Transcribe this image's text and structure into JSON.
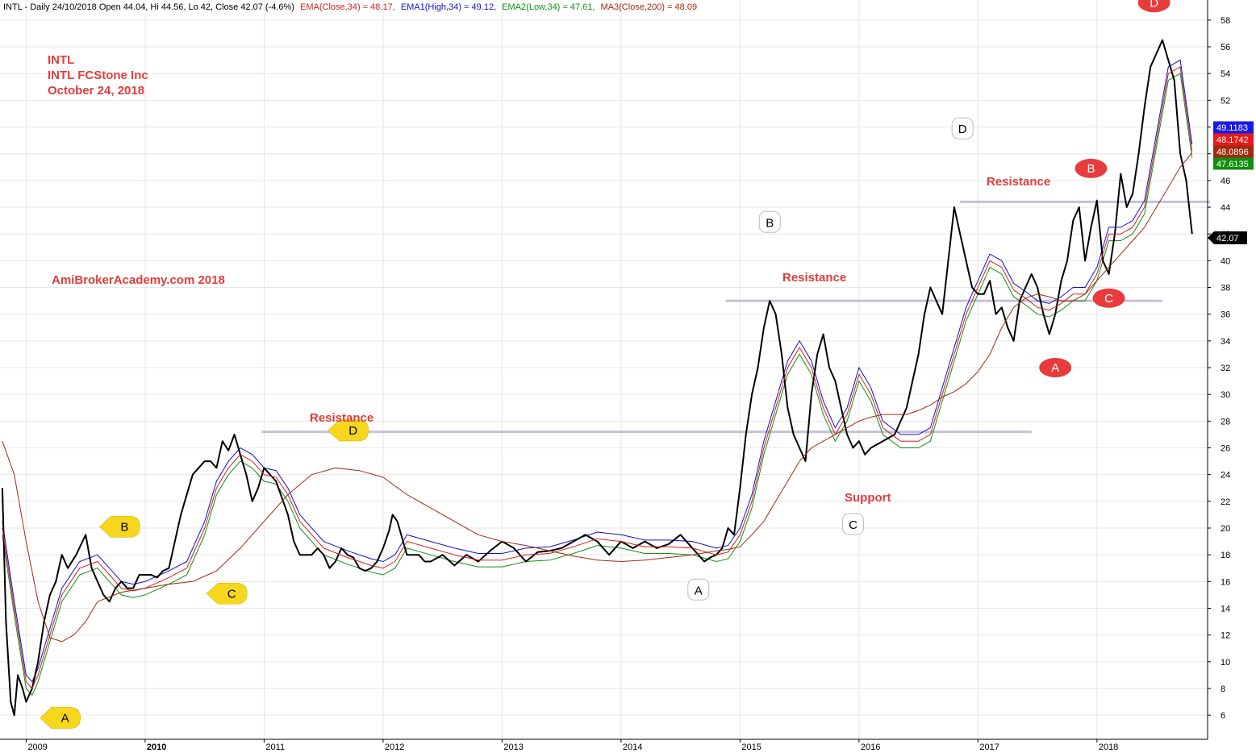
{
  "header": {
    "ticker_info": "INTL - Daily 24/10/2018 Open 44.04, Hi 44.56, Lo 42, Close 42.07 (-4.6%)",
    "ema": "EMA(Close,34) = 48.17,",
    "ema1": "EMA1(High,34) = 49.12,",
    "ema2": "EMA2(Low,34) = 47.61,",
    "ma3": "MA3(Close,200) = 48.09"
  },
  "notes": {
    "symbol": "INTL",
    "company": "INTL FCStone Inc",
    "date": "October 24, 2018",
    "watermark": "AmiBrokerAcademy.com  2018",
    "resistance_label": "Resistance",
    "support_label": "Support"
  },
  "price_tags": {
    "ema1": "49.1183",
    "ema": "48.1742",
    "ma3": "48.0896",
    "ema2": "47.6135",
    "close": "42.07"
  },
  "colors": {
    "price": "#000000",
    "ema_close": "#d42020",
    "ema_high": "#1010d0",
    "ema_low": "#109010",
    "ma_200": "#a02a10",
    "grid": "#e6e6e6",
    "level_line": "#c6c0da",
    "note_red": "#e03c3c",
    "pattern_yellow": "#f7d71e",
    "pattern_red": "#e83b3b"
  },
  "chart_data": {
    "type": "line",
    "title": "INTL - Daily 24/10/2018",
    "xlabel": "",
    "ylabel": "",
    "x_ticks": [
      "2009",
      "2010",
      "2011",
      "2012",
      "2013",
      "2014",
      "2015",
      "2016",
      "2017",
      "2018"
    ],
    "y_ticks": [
      6,
      8,
      10,
      12,
      14,
      16,
      18,
      20,
      22,
      24,
      26,
      28,
      30,
      32,
      34,
      36,
      38,
      40,
      42,
      44,
      46,
      48,
      50,
      52,
      54,
      56,
      58
    ],
    "ylim": [
      4.2,
      59.5
    ],
    "xlim": [
      2008.78,
      2018.93
    ],
    "grid": true,
    "legend": "none",
    "series": [
      {
        "name": "INTL",
        "x": [
          2008.8,
          2008.83,
          2008.87,
          2008.9,
          2008.93,
          2008.97,
          2009.0,
          2009.05,
          2009.1,
          2009.15,
          2009.2,
          2009.25,
          2009.3,
          2009.35,
          2009.42,
          2009.5,
          2009.55,
          2009.6,
          2009.65,
          2009.7,
          2009.75,
          2009.8,
          2009.85,
          2009.9,
          2009.95,
          2010.0,
          2010.05,
          2010.1,
          2010.15,
          2010.2,
          2010.3,
          2010.4,
          2010.5,
          2010.55,
          2010.6,
          2010.65,
          2010.7,
          2010.75,
          2010.8,
          2010.85,
          2010.9,
          2010.95,
          2011.0,
          2011.1,
          2011.2,
          2011.25,
          2011.3,
          2011.4,
          2011.45,
          2011.5,
          2011.55,
          2011.6,
          2011.65,
          2011.7,
          2011.75,
          2011.8,
          2011.85,
          2011.9,
          2011.95,
          2012.0,
          2012.05,
          2012.08,
          2012.12,
          2012.2,
          2012.3,
          2012.35,
          2012.4,
          2012.5,
          2012.6,
          2012.7,
          2012.8,
          2012.9,
          2013.0,
          2013.1,
          2013.2,
          2013.3,
          2013.4,
          2013.5,
          2013.6,
          2013.7,
          2013.8,
          2013.9,
          2014.0,
          2014.1,
          2014.2,
          2014.3,
          2014.4,
          2014.5,
          2014.6,
          2014.7,
          2014.75,
          2014.8,
          2014.85,
          2014.9,
          2014.95,
          2015.0,
          2015.05,
          2015.1,
          2015.15,
          2015.2,
          2015.25,
          2015.3,
          2015.35,
          2015.4,
          2015.45,
          2015.5,
          2015.55,
          2015.6,
          2015.65,
          2015.7,
          2015.75,
          2015.8,
          2015.85,
          2015.9,
          2015.95,
          2016.0,
          2016.05,
          2016.1,
          2016.2,
          2016.3,
          2016.4,
          2016.45,
          2016.5,
          2016.55,
          2016.6,
          2016.65,
          2016.7,
          2016.75,
          2016.8,
          2016.85,
          2016.9,
          2016.95,
          2017.0,
          2017.05,
          2017.1,
          2017.15,
          2017.2,
          2017.25,
          2017.3,
          2017.35,
          2017.4,
          2017.45,
          2017.5,
          2017.55,
          2017.6,
          2017.65,
          2017.7,
          2017.75,
          2017.8,
          2017.85,
          2017.9,
          2017.95,
          2018.0,
          2018.05,
          2018.1,
          2018.15,
          2018.2,
          2018.25,
          2018.3,
          2018.35,
          2018.4,
          2018.45,
          2018.5,
          2018.55,
          2018.6,
          2018.65,
          2018.7,
          2018.75,
          2018.8
        ],
        "values": [
          23,
          13,
          7,
          6,
          9,
          8,
          7,
          8,
          10,
          13,
          15,
          16,
          18,
          17,
          18,
          19.5,
          17,
          16,
          15,
          14.5,
          15.5,
          16,
          15.5,
          15.5,
          16.5,
          16.5,
          16.5,
          16.3,
          16.8,
          17,
          21,
          24,
          25,
          25,
          24.5,
          26.5,
          25.8,
          27,
          25.5,
          24,
          22,
          23,
          24.5,
          23.5,
          21,
          19,
          18,
          18,
          18.5,
          18,
          17,
          17.5,
          18.5,
          18,
          17.8,
          17,
          16.8,
          17,
          17.5,
          18.5,
          19.8,
          21,
          20.5,
          18,
          18,
          17.5,
          17.5,
          18,
          17.2,
          18,
          17.5,
          18.3,
          19,
          18.5,
          17.5,
          18.2,
          18.3,
          18.5,
          19,
          19.5,
          19,
          18,
          19,
          18.5,
          19,
          18.5,
          18.8,
          19.5,
          18.5,
          17.5,
          17.8,
          18,
          18.5,
          20,
          19.5,
          23,
          27,
          30,
          32,
          35,
          37,
          36,
          33,
          29,
          27,
          26,
          25,
          30,
          33,
          34.5,
          32,
          31,
          29,
          27,
          26,
          26.5,
          25.5,
          26,
          26.5,
          27,
          29,
          31,
          33,
          36,
          38,
          37,
          36,
          40,
          44,
          42,
          40,
          38,
          37.5,
          37.5,
          38.5,
          36,
          36.5,
          35,
          34,
          37,
          38,
          39,
          38,
          36,
          34.5,
          36,
          38.5,
          40,
          43,
          44,
          40,
          42.5,
          44.5,
          40,
          39,
          42,
          46.5,
          44,
          45,
          48,
          51.5,
          54.5,
          55.5,
          56.5,
          55,
          53.5,
          48,
          46,
          42
        ]
      },
      {
        "name": "EMA(Close,34)",
        "x": [
          2008.8,
          2008.9,
          2009.0,
          2009.05,
          2009.1,
          2009.2,
          2009.3,
          2009.45,
          2009.6,
          2009.7,
          2009.8,
          2009.9,
          2010.0,
          2010.2,
          2010.35,
          2010.5,
          2010.6,
          2010.7,
          2010.8,
          2010.9,
          2011.0,
          2011.1,
          2011.2,
          2011.3,
          2011.5,
          2011.7,
          2011.9,
          2012.0,
          2012.1,
          2012.2,
          2012.4,
          2012.6,
          2012.8,
          2013.0,
          2013.2,
          2013.4,
          2013.6,
          2013.8,
          2014.0,
          2014.2,
          2014.4,
          2014.6,
          2014.8,
          2014.9,
          2015.0,
          2015.1,
          2015.2,
          2015.3,
          2015.4,
          2015.5,
          2015.6,
          2015.7,
          2015.8,
          2015.9,
          2016.0,
          2016.1,
          2016.2,
          2016.35,
          2016.5,
          2016.6,
          2016.7,
          2016.8,
          2016.9,
          2017.0,
          2017.1,
          2017.2,
          2017.3,
          2017.4,
          2017.5,
          2017.6,
          2017.7,
          2017.8,
          2017.9,
          2018.0,
          2018.1,
          2018.2,
          2018.3,
          2018.4,
          2018.5,
          2018.6,
          2018.7,
          2018.8
        ],
        "values": [
          20,
          14,
          8.5,
          8,
          9,
          12,
          15,
          17,
          17.5,
          16.5,
          15.5,
          15.3,
          15.5,
          16.3,
          17,
          20,
          23,
          24.5,
          25.5,
          25,
          24,
          23.8,
          22.5,
          20.5,
          18.5,
          17.8,
          17.2,
          17,
          17.5,
          19,
          18.5,
          18,
          17.6,
          17.6,
          18,
          18.1,
          18.6,
          19.2,
          19,
          18.6,
          18.6,
          18.5,
          18,
          18.2,
          19.5,
          22,
          26,
          29,
          32,
          33.5,
          32,
          29,
          27,
          28.5,
          31.5,
          30,
          27.5,
          26.5,
          26.5,
          27,
          30,
          33,
          36,
          38,
          40,
          39.5,
          37.8,
          37.2,
          36.5,
          36.3,
          36.8,
          37.5,
          37.5,
          39,
          42,
          42,
          42.5,
          44,
          49,
          54,
          54.5,
          48.2
        ]
      },
      {
        "name": "MA3(Close,200)",
        "x": [
          2008.8,
          2008.9,
          2009.0,
          2009.1,
          2009.2,
          2009.3,
          2009.4,
          2009.5,
          2009.6,
          2009.8,
          2010.0,
          2010.2,
          2010.4,
          2010.6,
          2010.8,
          2011.0,
          2011.2,
          2011.4,
          2011.6,
          2011.8,
          2012.0,
          2012.2,
          2012.4,
          2012.6,
          2012.8,
          2013.0,
          2013.2,
          2013.4,
          2013.6,
          2013.8,
          2014.0,
          2014.2,
          2014.4,
          2014.6,
          2014.8,
          2014.9,
          2015.0,
          2015.1,
          2015.2,
          2015.3,
          2015.4,
          2015.5,
          2015.6,
          2015.7,
          2015.8,
          2015.9,
          2016.0,
          2016.1,
          2016.2,
          2016.3,
          2016.4,
          2016.5,
          2016.6,
          2016.7,
          2016.8,
          2016.9,
          2017.0,
          2017.1,
          2017.2,
          2017.3,
          2017.4,
          2017.5,
          2017.6,
          2017.7,
          2017.8,
          2017.9,
          2018.0,
          2018.1,
          2018.2,
          2018.3,
          2018.4,
          2018.5,
          2018.6,
          2018.7,
          2018.8
        ],
        "values": [
          26.5,
          24,
          19,
          14.5,
          11.8,
          11.5,
          12,
          13,
          14.5,
          15.2,
          15.5,
          15.8,
          16,
          16.8,
          18.5,
          20.5,
          22.5,
          24,
          24.5,
          24.3,
          23.8,
          22.5,
          21.5,
          20.5,
          19.5,
          19,
          18.7,
          18.3,
          17.9,
          17.6,
          17.5,
          17.6,
          17.8,
          18,
          18.3,
          18.4,
          18.6,
          19.5,
          20.5,
          22,
          23.5,
          25,
          26,
          26.5,
          27,
          27.5,
          28,
          28.3,
          28.5,
          28.5,
          28.5,
          28.8,
          29.2,
          29.8,
          30.2,
          30.8,
          31.7,
          33,
          35,
          36.5,
          37.2,
          37.5,
          37.3,
          37,
          37,
          37.5,
          38.5,
          39.5,
          40.5,
          41.5,
          42.5,
          44,
          45.5,
          47,
          48.09
        ]
      }
    ],
    "resistance_levels": [
      {
        "label": "Resistance",
        "value": 27.2,
        "x_start": 2010.98,
        "x_end": 2017.45
      },
      {
        "label": "Resistance",
        "value": 37,
        "x_start": 2014.88,
        "x_end": 2018.55
      },
      {
        "label": "Resistance",
        "value": 44.4,
        "x_start": 2016.85,
        "x_end": 2018.95
      }
    ],
    "pattern_points": [
      {
        "label": "A",
        "style": "yellow",
        "x": 2009.3,
        "y": 5.8
      },
      {
        "label": "B",
        "style": "yellow",
        "x": 2009.8,
        "y": 20.1
      },
      {
        "label": "C",
        "style": "yellow",
        "x": 2010.7,
        "y": 15.1
      },
      {
        "label": "D",
        "style": "yellow",
        "x": 2011.72,
        "y": 27.3
      },
      {
        "label": "A",
        "style": "white",
        "x": 2014.65,
        "y": 15.4
      },
      {
        "label": "B",
        "style": "white",
        "x": 2015.25,
        "y": 42.9
      },
      {
        "label": "C",
        "style": "white",
        "x": 2015.95,
        "y": 20.3
      },
      {
        "label": "D",
        "style": "white",
        "x": 2016.87,
        "y": 49.9
      },
      {
        "label": "A",
        "style": "red",
        "x": 2017.65,
        "y": 32.0
      },
      {
        "label": "B",
        "style": "red",
        "x": 2017.95,
        "y": 46.9
      },
      {
        "label": "C",
        "style": "red",
        "x": 2018.1,
        "y": 37.2
      },
      {
        "label": "D",
        "style": "red",
        "x": 2018.48,
        "y": 59.3
      }
    ]
  }
}
